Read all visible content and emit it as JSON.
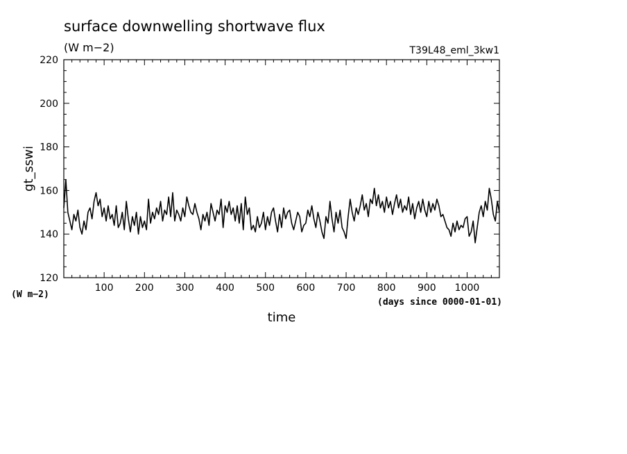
{
  "chart_data": {
    "type": "line",
    "title": "surface downwelling shortwave flux",
    "subtitle": "(W m−2)",
    "run_label": "T39L48_eml_3kw1",
    "ylabel": "gt_sswi",
    "y_unit_label": "(W m−2)",
    "xlabel": "time",
    "x_unit_label": "(days since 0000-01-01)",
    "xlim": [
      0,
      1080
    ],
    "ylim": [
      120,
      220
    ],
    "x_ticks": [
      100,
      200,
      300,
      400,
      500,
      600,
      700,
      800,
      900,
      1000
    ],
    "y_ticks": [
      120,
      140,
      160,
      180,
      200,
      220
    ],
    "grid": false,
    "series": [
      {
        "x": [
          0,
          5,
          10,
          15,
          20,
          25,
          30,
          35,
          40,
          45,
          50,
          55,
          60,
          65,
          70,
          75,
          80,
          85,
          90,
          95,
          100,
          105,
          110,
          115,
          120,
          125,
          130,
          135,
          140,
          145,
          150,
          155,
          160,
          165,
          170,
          175,
          180,
          185,
          190,
          195,
          200,
          205,
          210,
          215,
          220,
          225,
          230,
          235,
          240,
          245,
          250,
          255,
          260,
          265,
          270,
          275,
          280,
          285,
          290,
          295,
          300,
          305,
          310,
          315,
          320,
          325,
          330,
          335,
          340,
          345,
          350,
          355,
          360,
          365,
          370,
          375,
          380,
          385,
          390,
          395,
          400,
          405,
          410,
          415,
          420,
          425,
          430,
          435,
          440,
          445,
          450,
          455,
          460,
          465,
          470,
          475,
          480,
          485,
          490,
          495,
          500,
          505,
          510,
          515,
          520,
          525,
          530,
          535,
          540,
          545,
          550,
          555,
          560,
          565,
          570,
          575,
          580,
          585,
          590,
          595,
          600,
          605,
          610,
          615,
          620,
          625,
          630,
          635,
          640,
          645,
          650,
          655,
          660,
          665,
          670,
          675,
          680,
          685,
          690,
          695,
          700,
          705,
          710,
          715,
          720,
          725,
          730,
          735,
          740,
          745,
          750,
          755,
          760,
          765,
          770,
          775,
          780,
          785,
          790,
          795,
          800,
          805,
          810,
          815,
          820,
          825,
          830,
          835,
          840,
          845,
          850,
          855,
          860,
          865,
          870,
          875,
          880,
          885,
          890,
          895,
          900,
          905,
          910,
          915,
          920,
          925,
          930,
          935,
          940,
          945,
          950,
          955,
          960,
          965,
          970,
          975,
          980,
          985,
          990,
          995,
          1000,
          1005,
          1010,
          1015,
          1020,
          1025,
          1030,
          1035,
          1040,
          1045,
          1050,
          1055,
          1060,
          1065,
          1070,
          1075,
          1080
        ],
        "values": [
          152,
          165,
          150,
          146,
          142,
          149,
          146,
          151,
          143,
          140,
          146,
          142,
          150,
          152,
          147,
          155,
          159,
          153,
          156,
          148,
          152,
          146,
          153,
          147,
          149,
          144,
          153,
          143,
          145,
          150,
          142,
          155,
          147,
          141,
          148,
          144,
          150,
          140,
          148,
          143,
          146,
          142,
          156,
          145,
          150,
          147,
          152,
          149,
          155,
          146,
          151,
          149,
          157,
          148,
          159,
          146,
          151,
          149,
          146,
          152,
          148,
          157,
          153,
          150,
          149,
          154,
          150,
          147,
          142,
          149,
          146,
          150,
          144,
          154,
          150,
          146,
          151,
          149,
          156,
          143,
          153,
          150,
          155,
          149,
          152,
          146,
          153,
          145,
          154,
          142,
          157,
          149,
          152,
          142,
          144,
          141,
          148,
          143,
          145,
          150,
          142,
          148,
          144,
          150,
          152,
          146,
          141,
          149,
          143,
          152,
          147,
          150,
          151,
          145,
          142,
          146,
          150,
          148,
          141,
          144,
          145,
          151,
          148,
          153,
          147,
          143,
          150,
          146,
          141,
          138,
          148,
          145,
          155,
          147,
          141,
          150,
          145,
          151,
          143,
          141,
          138,
          148,
          156,
          150,
          146,
          152,
          149,
          153,
          158,
          151,
          154,
          148,
          156,
          154,
          161,
          153,
          158,
          152,
          155,
          150,
          157,
          152,
          155,
          149,
          154,
          158,
          152,
          156,
          150,
          153,
          151,
          157,
          149,
          154,
          147,
          152,
          155,
          150,
          156,
          151,
          148,
          155,
          150,
          154,
          151,
          156,
          153,
          148,
          149,
          146,
          143,
          142,
          139,
          145,
          141,
          146,
          142,
          144,
          143,
          147,
          148,
          139,
          141,
          146,
          136,
          143,
          150,
          153,
          148,
          155,
          151,
          161,
          156,
          149,
          146,
          155,
          150
        ]
      }
    ]
  }
}
